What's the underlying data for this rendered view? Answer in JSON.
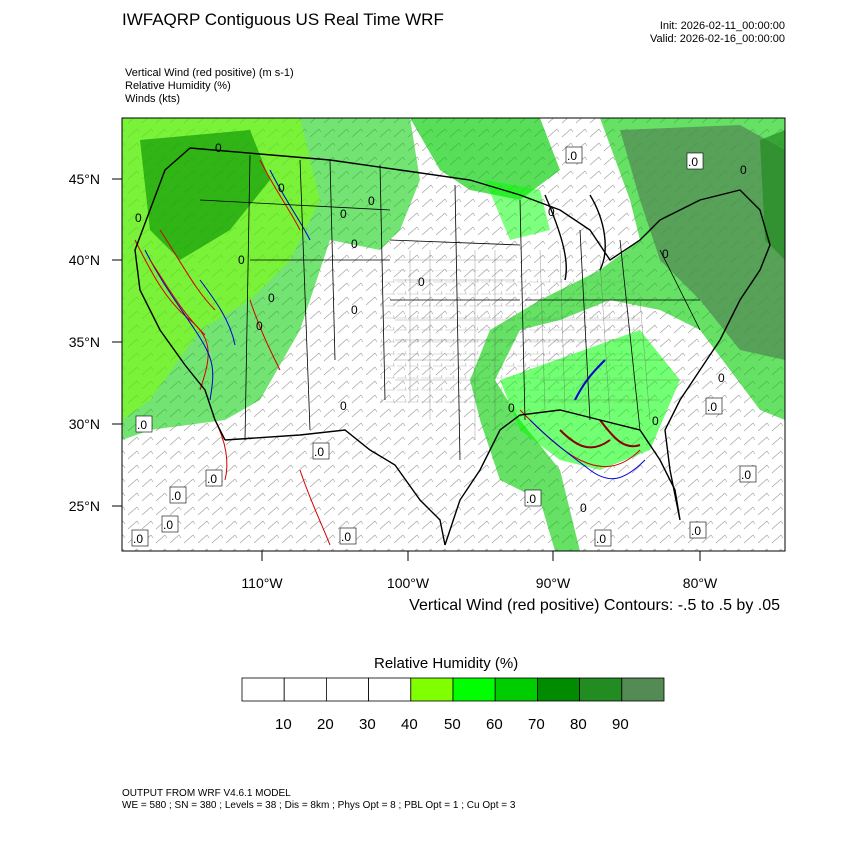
{
  "header": {
    "title": "IWFAQRP Contiguous US Real Time WRF",
    "init": "Init: 2026-02-11_00:00:00",
    "valid": "Valid: 2026-02-16_00:00:00"
  },
  "fields": [
    "Vertical Wind (red positive)   (m s-1)",
    "Relative Humidity   (%)",
    "Winds   (kts)"
  ],
  "map": {
    "lat_labels": [
      "45°N",
      "40°N",
      "35°N",
      "30°N",
      "25°N"
    ],
    "lon_labels": [
      "110°W",
      "100°W",
      "90°W",
      "80°W"
    ],
    "contour_note": "Vertical Wind (red positive) Contours: -.5 to .5 by .05",
    "zero_marker": "0",
    "zero_marker_dot": ".0"
  },
  "colorbar": {
    "title": "Relative Humidity  (%)",
    "labels": [
      "10",
      "20",
      "30",
      "40",
      "50",
      "60",
      "70",
      "80",
      "90"
    ],
    "colors": [
      "#ffffff",
      "#ffffff",
      "#ffffff",
      "#ffffff",
      "#7fff00",
      "#00ff00",
      "#00cd00",
      "#008b00",
      "#228b22",
      "#548b54"
    ]
  },
  "footer": {
    "line1": "OUTPUT FROM WRF V4.6.1 MODEL",
    "line2": "WE = 580 ; SN = 380 ; Levels = 38 ; Dis = 8km ; Phys Opt = 8 ; PBL Opt = 1 ; Cu Opt = 3"
  }
}
